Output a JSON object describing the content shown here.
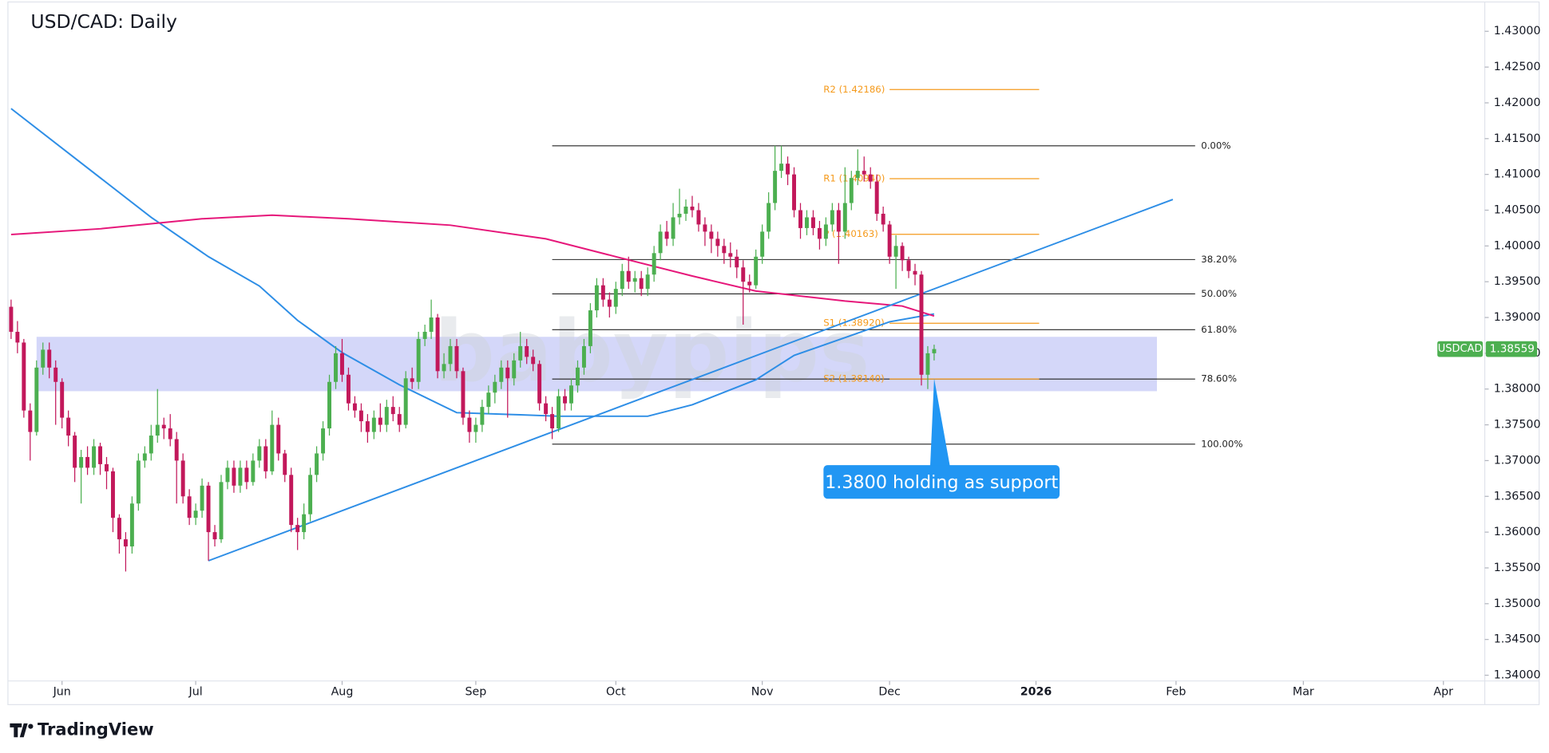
{
  "chart_data": {
    "type": "candlestick",
    "title": "USD/CAD: Daily",
    "brand": "TradingView",
    "watermark": "babypips",
    "up_color": "#4caf50",
    "down_color": "#c2185b",
    "xlim": [
      -0.5,
      231.5
    ],
    "xticks": [
      {
        "value": 8,
        "label": "Jun"
      },
      {
        "value": 29,
        "label": "Jul"
      },
      {
        "value": 52,
        "label": "Aug"
      },
      {
        "value": 73,
        "label": "Sep"
      },
      {
        "value": 95,
        "label": "Oct"
      },
      {
        "value": 118,
        "label": "Nov"
      },
      {
        "value": 138,
        "label": "Dec"
      },
      {
        "value": 161,
        "label": "2026"
      },
      {
        "value": 183,
        "label": "Feb"
      },
      {
        "value": 203,
        "label": "Mar"
      },
      {
        "value": 225,
        "label": "Apr"
      }
    ],
    "ylim": [
      1.3392,
      1.4341
    ],
    "yticks": [
      {
        "value": 1.34,
        "label": "1.34000"
      },
      {
        "value": 1.345,
        "label": "1.34500"
      },
      {
        "value": 1.35,
        "label": "1.35000"
      },
      {
        "value": 1.355,
        "label": "1.35500"
      },
      {
        "value": 1.36,
        "label": "1.36000"
      },
      {
        "value": 1.365,
        "label": "1.36500"
      },
      {
        "value": 1.37,
        "label": "1.37000"
      },
      {
        "value": 1.375,
        "label": "1.37500"
      },
      {
        "value": 1.38,
        "label": "1.38000"
      },
      {
        "value": 1.385,
        "label": "1.38500"
      },
      {
        "value": 1.39,
        "label": "1.39000"
      },
      {
        "value": 1.395,
        "label": "1.39500"
      },
      {
        "value": 1.4,
        "label": "1.40000"
      },
      {
        "value": 1.405,
        "label": "1.40500"
      },
      {
        "value": 1.41,
        "label": "1.41000"
      },
      {
        "value": 1.415,
        "label": "1.41500"
      },
      {
        "value": 1.42,
        "label": "1.42000"
      },
      {
        "value": 1.425,
        "label": "1.42500"
      },
      {
        "value": 1.43,
        "label": "1.43000"
      }
    ],
    "x": [
      0,
      1,
      2,
      3,
      4,
      5,
      6,
      7,
      8,
      9,
      10,
      11,
      12,
      13,
      14,
      15,
      16,
      17,
      18,
      19,
      20,
      21,
      22,
      23,
      24,
      25,
      26,
      27,
      28,
      29,
      30,
      31,
      32,
      33,
      34,
      35,
      36,
      37,
      38,
      39,
      40,
      41,
      42,
      43,
      44,
      45,
      46,
      47,
      48,
      49,
      50,
      51,
      52,
      53,
      54,
      55,
      56,
      57,
      58,
      59,
      60,
      61,
      62,
      63,
      64,
      65,
      66,
      67,
      68,
      69,
      70,
      71,
      72,
      73,
      74,
      75,
      76,
      77,
      78,
      79,
      80,
      81,
      82,
      83,
      84,
      85,
      86,
      87,
      88,
      89,
      90,
      91,
      92,
      93,
      94,
      95,
      96,
      97,
      98,
      99,
      100,
      101,
      102,
      103,
      104,
      105,
      106,
      107,
      108,
      109,
      110,
      111,
      112,
      113,
      114,
      115,
      116,
      117,
      118,
      119,
      120,
      121,
      122,
      123,
      124,
      125,
      126,
      127,
      128,
      129,
      130,
      131,
      132,
      133,
      134,
      135,
      136,
      137,
      138,
      139,
      140,
      141,
      142,
      143,
      144,
      145
    ],
    "open": [
      1.3915,
      1.388,
      1.3865,
      1.377,
      1.374,
      1.383,
      1.3855,
      1.383,
      1.381,
      1.376,
      1.3735,
      1.369,
      1.3705,
      1.369,
      1.372,
      1.3695,
      1.3685,
      1.362,
      1.359,
      1.358,
      1.364,
      1.37,
      1.371,
      1.3735,
      1.375,
      1.3745,
      1.373,
      1.37,
      1.365,
      1.362,
      1.363,
      1.3665,
      1.36,
      1.359,
      1.367,
      1.369,
      1.3665,
      1.369,
      1.367,
      1.37,
      1.372,
      1.3685,
      1.375,
      1.371,
      1.368,
      1.361,
      1.36,
      1.3625,
      1.368,
      1.371,
      1.3745,
      1.381,
      1.385,
      1.382,
      1.378,
      1.377,
      1.3755,
      1.374,
      1.376,
      1.375,
      1.3775,
      1.3765,
      1.375,
      1.3815,
      1.381,
      1.387,
      1.388,
      1.39,
      1.3825,
      1.3835,
      1.386,
      1.3825,
      1.376,
      1.374,
      1.375,
      1.3775,
      1.3795,
      1.381,
      1.383,
      1.3815,
      1.384,
      1.386,
      1.3845,
      1.3835,
      1.378,
      1.3765,
      1.3745,
      1.379,
      1.378,
      1.3805,
      1.383,
      1.386,
      1.391,
      1.3945,
      1.3925,
      1.3915,
      1.394,
      1.3965,
      1.395,
      1.3955,
      1.394,
      1.396,
      1.399,
      1.402,
      1.401,
      1.404,
      1.4045,
      1.4055,
      1.405,
      1.403,
      1.402,
      1.401,
      1.4,
      1.399,
      1.3985,
      1.397,
      1.395,
      1.3945,
      1.3985,
      1.402,
      1.406,
      1.4105,
      1.4115,
      1.41,
      1.405,
      1.4025,
      1.404,
      1.4025,
      1.401,
      1.403,
      1.405,
      1.402,
      1.406,
      1.4095,
      1.4105,
      1.41,
      1.409,
      1.4045,
      1.403,
      1.3985,
      1.4,
      1.398,
      1.3965,
      1.396,
      1.382,
      1.385
    ],
    "high": [
      1.3925,
      1.3895,
      1.387,
      1.378,
      1.384,
      1.3865,
      1.3865,
      1.384,
      1.3815,
      1.377,
      1.374,
      1.3715,
      1.372,
      1.373,
      1.3725,
      1.3705,
      1.369,
      1.3625,
      1.36,
      1.365,
      1.371,
      1.372,
      1.375,
      1.38,
      1.376,
      1.3765,
      1.374,
      1.371,
      1.366,
      1.364,
      1.3675,
      1.367,
      1.361,
      1.368,
      1.37,
      1.37,
      1.37,
      1.37,
      1.371,
      1.373,
      1.373,
      1.377,
      1.376,
      1.3715,
      1.369,
      1.362,
      1.364,
      1.369,
      1.372,
      1.3755,
      1.382,
      1.386,
      1.387,
      1.383,
      1.379,
      1.378,
      1.3765,
      1.377,
      1.378,
      1.3785,
      1.379,
      1.3775,
      1.3825,
      1.383,
      1.388,
      1.389,
      1.3925,
      1.3905,
      1.385,
      1.387,
      1.387,
      1.383,
      1.377,
      1.376,
      1.3785,
      1.3805,
      1.382,
      1.384,
      1.384,
      1.385,
      1.388,
      1.387,
      1.3855,
      1.384,
      1.379,
      1.3775,
      1.38,
      1.38,
      1.3815,
      1.384,
      1.387,
      1.392,
      1.3955,
      1.3955,
      1.3935,
      1.395,
      1.3975,
      1.3985,
      1.3965,
      1.3965,
      1.397,
      1.4,
      1.403,
      1.4035,
      1.406,
      1.408,
      1.4065,
      1.407,
      1.406,
      1.404,
      1.403,
      1.402,
      1.401,
      1.4005,
      1.3995,
      1.398,
      1.396,
      1.3995,
      1.403,
      1.4075,
      1.414,
      1.414,
      1.4125,
      1.411,
      1.406,
      1.405,
      1.405,
      1.4035,
      1.404,
      1.406,
      1.406,
      1.411,
      1.4105,
      1.4135,
      1.4125,
      1.411,
      1.41,
      1.4055,
      1.4035,
      1.4015,
      1.4005,
      1.3985,
      1.3975,
      1.3965,
      1.386,
      1.3862
    ],
    "low": [
      1.387,
      1.385,
      1.376,
      1.37,
      1.3735,
      1.382,
      1.3815,
      1.375,
      1.3745,
      1.372,
      1.367,
      1.364,
      1.368,
      1.368,
      1.368,
      1.366,
      1.36,
      1.357,
      1.3545,
      1.357,
      1.363,
      1.369,
      1.37,
      1.3725,
      1.373,
      1.372,
      1.364,
      1.364,
      1.361,
      1.361,
      1.362,
      1.356,
      1.358,
      1.3585,
      1.366,
      1.3655,
      1.3655,
      1.366,
      1.3665,
      1.369,
      1.3675,
      1.368,
      1.37,
      1.367,
      1.36,
      1.3575,
      1.359,
      1.3615,
      1.367,
      1.37,
      1.3735,
      1.38,
      1.381,
      1.377,
      1.376,
      1.374,
      1.3725,
      1.373,
      1.374,
      1.374,
      1.3755,
      1.374,
      1.3745,
      1.38,
      1.38,
      1.386,
      1.387,
      1.3815,
      1.3815,
      1.3825,
      1.3815,
      1.375,
      1.3725,
      1.3725,
      1.374,
      1.3765,
      1.378,
      1.38,
      1.376,
      1.3805,
      1.383,
      1.3835,
      1.3825,
      1.377,
      1.3755,
      1.373,
      1.374,
      1.377,
      1.377,
      1.3795,
      1.382,
      1.385,
      1.39,
      1.3915,
      1.39,
      1.3905,
      1.393,
      1.394,
      1.3935,
      1.393,
      1.393,
      1.395,
      1.398,
      1.4,
      1.4,
      1.403,
      1.4035,
      1.404,
      1.402,
      1.4,
      1.399,
      1.3985,
      1.3975,
      1.397,
      1.3955,
      1.389,
      1.3935,
      1.394,
      1.3975,
      1.401,
      1.405,
      1.4095,
      1.4085,
      1.404,
      1.401,
      1.4015,
      1.4015,
      1.3995,
      1.4,
      1.402,
      1.3975,
      1.401,
      1.405,
      1.4085,
      1.409,
      1.408,
      1.4035,
      1.402,
      1.3975,
      1.394,
      1.3965,
      1.3955,
      1.3945,
      1.3805,
      1.38,
      1.384
    ],
    "close": [
      1.388,
      1.3865,
      1.377,
      1.374,
      1.383,
      1.3855,
      1.383,
      1.381,
      1.376,
      1.3735,
      1.369,
      1.3705,
      1.369,
      1.372,
      1.3695,
      1.3685,
      1.362,
      1.359,
      1.358,
      1.364,
      1.37,
      1.371,
      1.3735,
      1.375,
      1.3745,
      1.373,
      1.37,
      1.365,
      1.362,
      1.363,
      1.3665,
      1.36,
      1.359,
      1.367,
      1.369,
      1.3665,
      1.369,
      1.367,
      1.37,
      1.372,
      1.3685,
      1.375,
      1.371,
      1.368,
      1.361,
      1.36,
      1.3625,
      1.368,
      1.371,
      1.3745,
      1.381,
      1.385,
      1.382,
      1.378,
      1.377,
      1.3755,
      1.374,
      1.376,
      1.375,
      1.3775,
      1.3765,
      1.375,
      1.3815,
      1.381,
      1.387,
      1.388,
      1.39,
      1.3825,
      1.3835,
      1.386,
      1.3825,
      1.376,
      1.374,
      1.375,
      1.3775,
      1.3795,
      1.381,
      1.383,
      1.3815,
      1.384,
      1.386,
      1.3845,
      1.3835,
      1.378,
      1.3765,
      1.3745,
      1.379,
      1.378,
      1.3805,
      1.383,
      1.386,
      1.391,
      1.3945,
      1.3925,
      1.3915,
      1.394,
      1.3965,
      1.395,
      1.3955,
      1.394,
      1.396,
      1.399,
      1.402,
      1.401,
      1.404,
      1.4045,
      1.4055,
      1.405,
      1.403,
      1.402,
      1.401,
      1.4,
      1.399,
      1.3985,
      1.397,
      1.395,
      1.3945,
      1.3985,
      1.402,
      1.406,
      1.4105,
      1.4115,
      1.41,
      1.405,
      1.4025,
      1.404,
      1.4025,
      1.401,
      1.403,
      1.405,
      1.402,
      1.406,
      1.4095,
      1.4105,
      1.41,
      1.409,
      1.4045,
      1.403,
      1.3985,
      1.4,
      1.398,
      1.3965,
      1.396,
      1.382,
      1.385,
      1.38559
    ],
    "lines": [
      {
        "color": "#2e8ee6",
        "x": [
          0,
          22,
          31,
          39,
          45,
          52,
          61,
          70,
          80,
          86,
          100,
          107,
          117,
          123,
          132,
          138,
          145
        ],
        "values": [
          1.4192,
          1.404,
          1.3985,
          1.3944,
          1.3896,
          1.3851,
          1.3806,
          1.3767,
          1.3764,
          1.3762,
          1.3762,
          1.3778,
          1.3813,
          1.3847,
          1.3875,
          1.3894,
          1.3905
        ]
      },
      {
        "color": "#e6177a",
        "x": [
          0,
          14,
          30,
          41,
          53,
          69,
          84,
          95,
          107,
          117,
          131,
          140,
          145
        ],
        "values": [
          1.4016,
          1.4024,
          1.4038,
          1.4043,
          1.4038,
          1.4029,
          1.401,
          1.3985,
          1.3958,
          1.3937,
          1.3923,
          1.3916,
          1.3902
        ]
      }
    ],
    "trendline": {
      "color": "#2e8ee6",
      "x": [
        31,
        182.5
      ],
      "y": [
        1.356,
        1.4065
      ]
    },
    "zone": {
      "color": "#c5c9f7",
      "x": [
        4,
        180
      ],
      "y": [
        1.3797,
        1.3873
      ]
    },
    "fib": {
      "color": "#222222",
      "x": [
        85,
        186
      ],
      "levels": [
        {
          "label": "0.00%",
          "value": 1.414
        },
        {
          "label": "38.20%",
          "value": 1.3981
        },
        {
          "label": "50.00%",
          "value": 1.3933
        },
        {
          "label": "61.80%",
          "value": 1.3883
        },
        {
          "label": "78.60%",
          "value": 1.3814
        },
        {
          "label": "100.00%",
          "value": 1.3723
        }
      ]
    },
    "pivots": {
      "color": "#f59a1b",
      "x": [
        138,
        161.5
      ],
      "levels": [
        {
          "label": "R2 (1.42186)",
          "value": 1.42186
        },
        {
          "label": "R1 (1.40940)",
          "value": 1.4094
        },
        {
          "label": "P (1.40163)",
          "value": 1.40163
        },
        {
          "label": "S1 (1.38920)",
          "value": 1.3892
        },
        {
          "label": "S2 (1.38140)",
          "value": 1.3814
        }
      ]
    },
    "annotation": {
      "text": "1.3800 holding as support",
      "x": 145,
      "y": 1.3815,
      "color": "#2196f3"
    },
    "last_price": {
      "symbol": "USDCAD",
      "value": 1.38559,
      "color": "#4caf50"
    }
  }
}
